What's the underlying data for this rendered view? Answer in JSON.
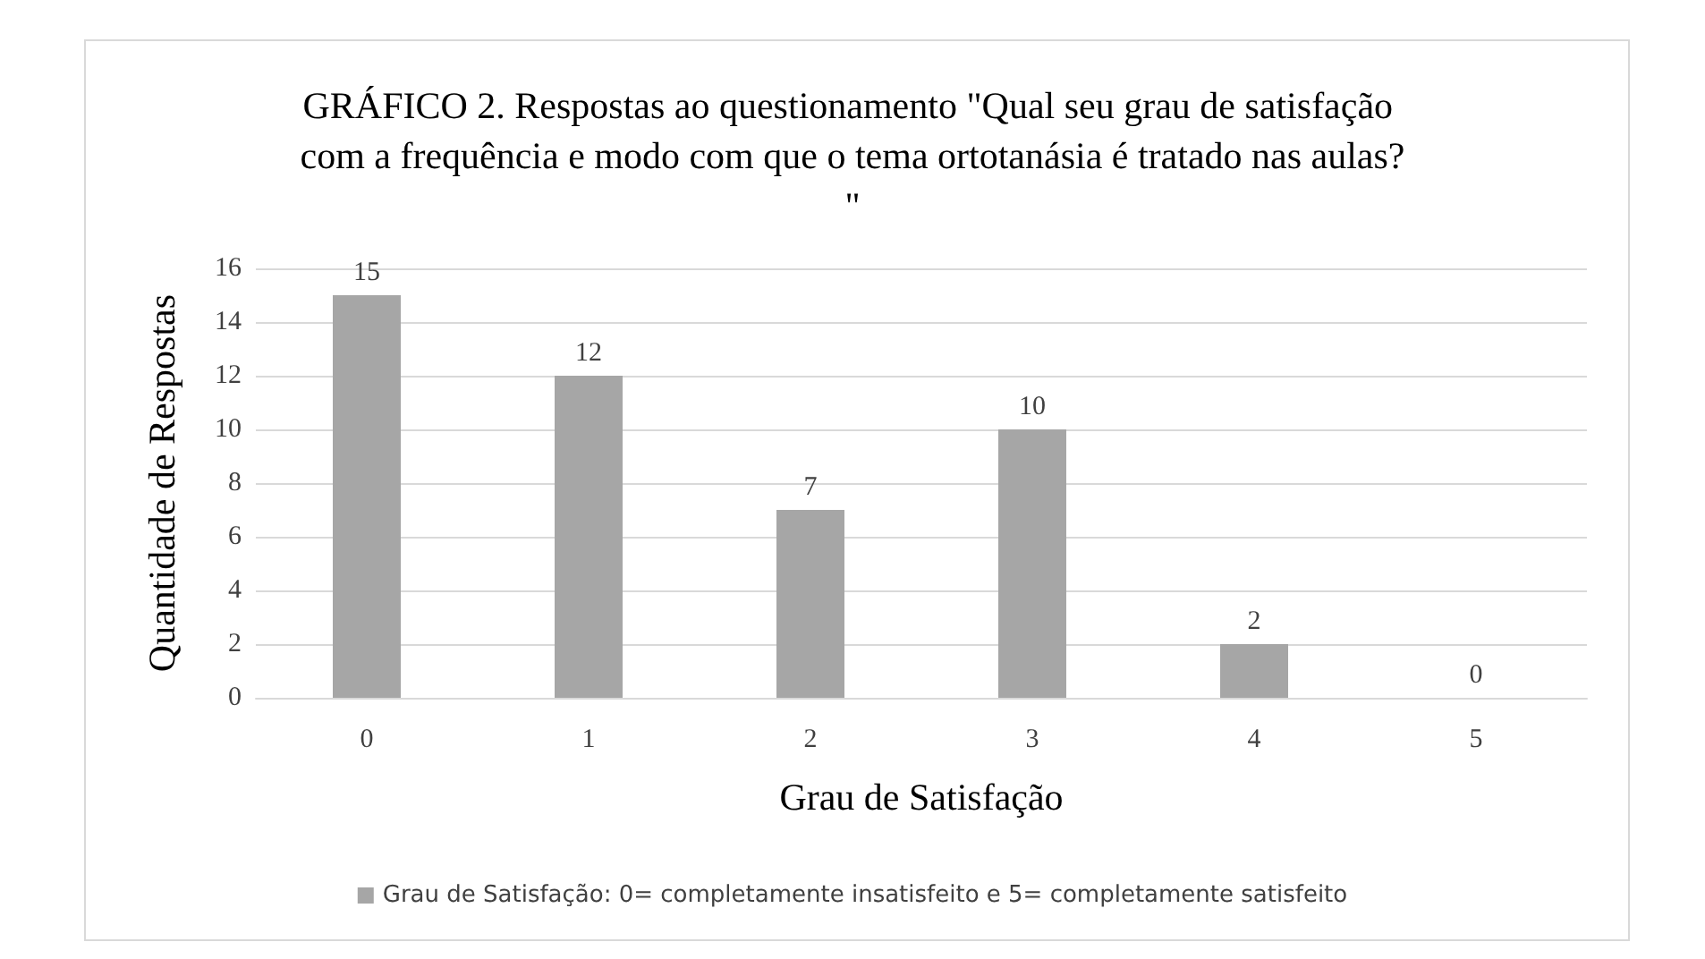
{
  "chart_data": {
    "type": "bar",
    "title": "GRÁFICO 2. Respostas ao questionamento \"Qual seu grau de satisfação com a frequência e modo com que o tema ortotanásia é tratado nas aulas?\"",
    "xlabel": "Grau de Satisfação",
    "ylabel": "Quantidade de Respostas",
    "categories": [
      "0",
      "1",
      "2",
      "3",
      "4",
      "5"
    ],
    "series": [
      {
        "name": "Grau de Satisfação: 0= completamente insatisfeito e 5= completamente satisfeito",
        "color": "#a6a6a6",
        "values": [
          15,
          12,
          7,
          10,
          2,
          0
        ]
      }
    ],
    "ylim": [
      0,
      16
    ],
    "yticks": [
      0,
      2,
      4,
      6,
      8,
      10,
      12,
      14,
      16
    ],
    "grid": "y",
    "legend": "bottom",
    "data_labels": true
  }
}
